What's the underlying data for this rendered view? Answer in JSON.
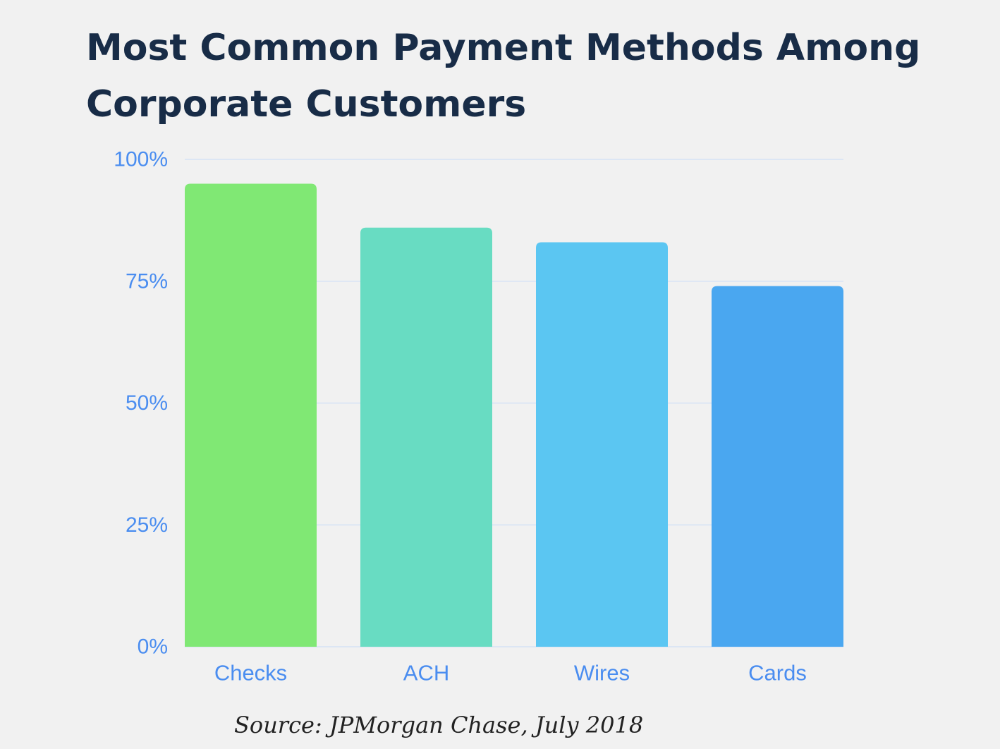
{
  "chart_data": {
    "type": "bar",
    "title": "Most Common Payment Methods Among Corporate Customers",
    "categories": [
      "Checks",
      "ACH",
      "Wires",
      "Cards"
    ],
    "values": [
      95,
      86,
      83,
      74
    ],
    "value_unit": "%",
    "colors": [
      "#80e874",
      "#68dcc2",
      "#5bc6f2",
      "#4aa7f0"
    ],
    "ylim": [
      0,
      100
    ],
    "yticks": [
      0,
      25,
      50,
      75,
      100
    ],
    "ytick_labels": [
      "0%",
      "25%",
      "50%",
      "75%",
      "100%"
    ],
    "xlabel": "",
    "ylabel": "",
    "grid": true,
    "grid_color": "#d6e2f5",
    "tick_color": "#4a8df0",
    "title_color": "#182c47"
  },
  "source": "Source: JPMorgan Chase, July 2018"
}
